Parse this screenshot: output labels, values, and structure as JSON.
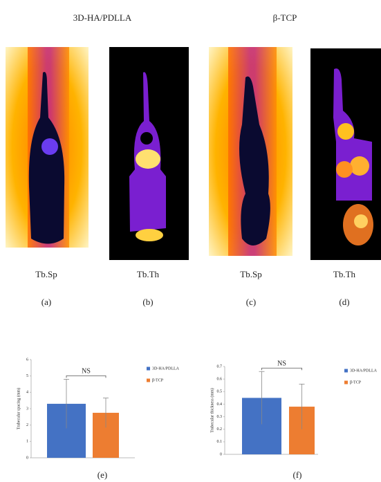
{
  "header": {
    "left_title": "3D-HA/PDLLA",
    "right_title": "β-TCP"
  },
  "panels": [
    {
      "caption": "Tb.Sp",
      "label": "(a)"
    },
    {
      "caption": "Tb.Th",
      "label": "(b)"
    },
    {
      "caption": "Tb.Sp",
      "label": "(c)"
    },
    {
      "caption": "Tb.Th",
      "label": "(d)"
    }
  ],
  "chart_data": [
    {
      "type": "bar",
      "y_label": "Trabecular spacing (mm)",
      "annotation": "NS",
      "label": "(e)",
      "ylim": [
        0,
        6
      ],
      "yticks": [
        0,
        1,
        2,
        3,
        4,
        5,
        6
      ],
      "series": [
        {
          "name": "3D-HA/PDLLA",
          "color": "#4472c4",
          "values": [
            3.3
          ],
          "errors": [
            1.5
          ]
        },
        {
          "name": "β-TCP",
          "color": "#ed7d31",
          "values": [
            2.75
          ],
          "errors": [
            0.9
          ]
        }
      ]
    },
    {
      "type": "bar",
      "y_label": "Trabecular thickness (mm)",
      "annotation": "NS",
      "label": "(f)",
      "ylim": [
        0,
        0.7
      ],
      "yticks": [
        0,
        0.1,
        0.2,
        0.3,
        0.4,
        0.5,
        0.6,
        0.7
      ],
      "series": [
        {
          "name": "3D-HA/PDLLA",
          "color": "#4472c4",
          "values": [
            0.45
          ],
          "errors": [
            0.21
          ]
        },
        {
          "name": "β-TCP",
          "color": "#ed7d31",
          "values": [
            0.38
          ],
          "errors": [
            0.18
          ]
        }
      ]
    }
  ]
}
